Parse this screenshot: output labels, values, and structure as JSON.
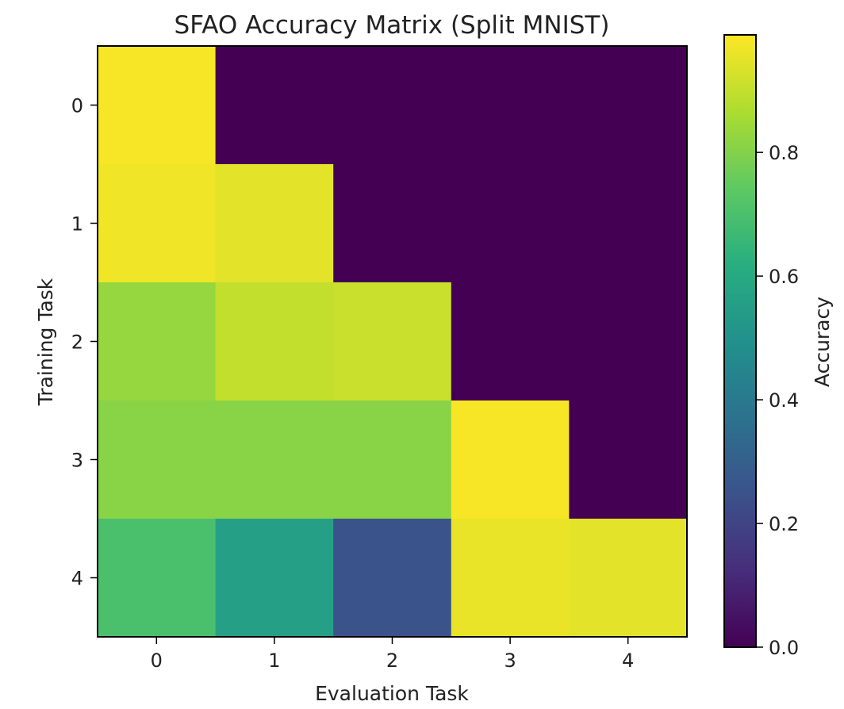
{
  "chart_data": {
    "type": "heatmap",
    "title": "SFAO Accuracy Matrix (Split MNIST)",
    "xlabel": "Evaluation Task",
    "ylabel": "Training Task",
    "x_categories": [
      "0",
      "1",
      "2",
      "3",
      "4"
    ],
    "y_categories": [
      "0",
      "1",
      "2",
      "3",
      "4"
    ],
    "values": [
      [
        0.98,
        0.0,
        0.0,
        0.0,
        0.0
      ],
      [
        0.97,
        0.95,
        0.0,
        0.0,
        0.0
      ],
      [
        0.83,
        0.9,
        0.91,
        0.0,
        0.0
      ],
      [
        0.81,
        0.81,
        0.81,
        0.98,
        0.0
      ],
      [
        0.7,
        0.56,
        0.25,
        0.96,
        0.95
      ]
    ],
    "colorbar": {
      "label": "Accuracy",
      "range": [
        0,
        0.99
      ],
      "ticks": [
        "0.0",
        "0.2",
        "0.4",
        "0.6",
        "0.8"
      ],
      "tick_values": [
        0.0,
        0.2,
        0.4,
        0.6,
        0.8
      ]
    },
    "colormap": "viridis",
    "grid": false
  }
}
